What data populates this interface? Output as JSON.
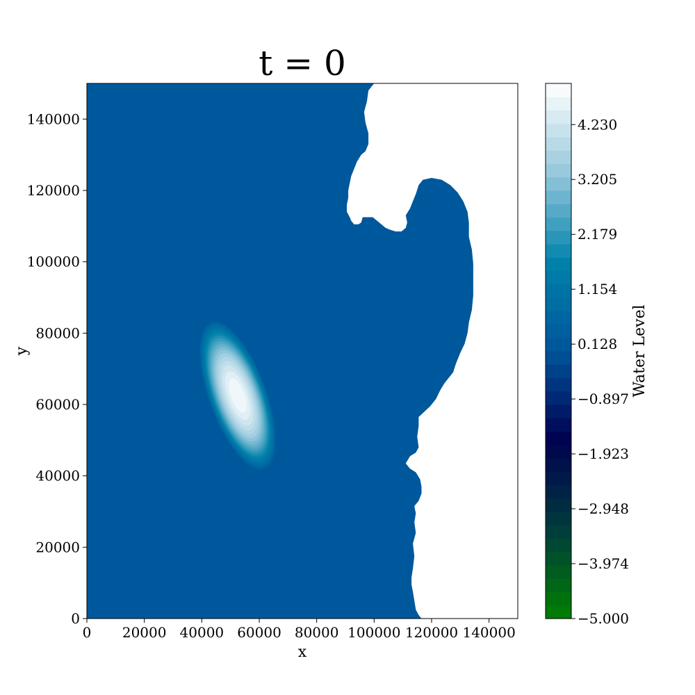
{
  "chart_data": {
    "type": "heatmap",
    "title": "t = 0",
    "xlabel": "x",
    "ylabel": "y",
    "xlim": [
      0,
      150000
    ],
    "ylim": [
      0,
      150000
    ],
    "xticks": [
      0,
      20000,
      40000,
      60000,
      80000,
      100000,
      120000,
      140000
    ],
    "yticks": [
      0,
      20000,
      40000,
      60000,
      80000,
      100000,
      120000,
      140000
    ],
    "xtick_labels": [
      "0",
      "20000",
      "40000",
      "60000",
      "80000",
      "100000",
      "120000",
      "140000"
    ],
    "ytick_labels": [
      "0",
      "20000",
      "40000",
      "60000",
      "80000",
      "100000",
      "120000",
      "140000"
    ],
    "grid": false,
    "colorbar": {
      "label": "Water Level",
      "range": [
        -5.0,
        5.0
      ],
      "ticks": [
        -5.0,
        -3.974,
        -2.948,
        -1.923,
        -0.897,
        0.128,
        1.154,
        2.179,
        3.205,
        4.23
      ],
      "tick_labels": [
        "−5.000",
        "−3.974",
        "−2.948",
        "−1.923",
        "−0.897",
        "0.128",
        "1.154",
        "2.179",
        "3.205",
        "4.230"
      ],
      "levels": 40,
      "colormap_stops": [
        "#008000",
        "#003c3c",
        "#000050",
        "#00559b",
        "#0082aa",
        "#96c8dc",
        "#ffffff"
      ]
    },
    "background_level": 0.128,
    "initial_hump": {
      "center": [
        52500,
        62500
      ],
      "peak_level": 5.0,
      "semi_major_axis": 27000,
      "semi_minor_axis": 10000,
      "orientation_deg": 110
    },
    "land_boundary": [
      [
        100000,
        150000
      ],
      [
        98000,
        148000
      ],
      [
        97500,
        145000
      ],
      [
        96500,
        142000
      ],
      [
        97000,
        139000
      ],
      [
        98000,
        136000
      ],
      [
        98000,
        133000
      ],
      [
        97000,
        131000
      ],
      [
        95500,
        130000
      ],
      [
        94000,
        128000
      ],
      [
        93000,
        126000
      ],
      [
        92000,
        124000
      ],
      [
        91500,
        122000
      ],
      [
        91000,
        120000
      ],
      [
        91000,
        118000
      ],
      [
        90500,
        116000
      ],
      [
        90500,
        114000
      ],
      [
        91500,
        112500
      ],
      [
        92000,
        111500
      ],
      [
        93000,
        110500
      ],
      [
        94500,
        110500
      ],
      [
        95500,
        111000
      ],
      [
        96000,
        112500
      ],
      [
        97500,
        112500
      ],
      [
        99500,
        112500
      ],
      [
        101000,
        111500
      ],
      [
        102500,
        110500
      ],
      [
        104000,
        109500
      ],
      [
        105500,
        109000
      ],
      [
        107500,
        108500
      ],
      [
        109500,
        108500
      ],
      [
        111000,
        109500
      ],
      [
        111500,
        111000
      ],
      [
        111000,
        113000
      ],
      [
        112500,
        115000
      ],
      [
        113500,
        117000
      ],
      [
        114500,
        119000
      ],
      [
        115500,
        121500
      ],
      [
        117000,
        123000
      ],
      [
        120000,
        123500
      ],
      [
        123500,
        123000
      ],
      [
        126500,
        121500
      ],
      [
        129000,
        119500
      ],
      [
        131000,
        117000
      ],
      [
        132500,
        114000
      ],
      [
        133000,
        111000
      ],
      [
        133000,
        107000
      ],
      [
        134000,
        103500
      ],
      [
        134500,
        99500
      ],
      [
        134500,
        95000
      ],
      [
        134500,
        90500
      ],
      [
        134000,
        86500
      ],
      [
        133000,
        83000
      ],
      [
        132500,
        80000
      ],
      [
        131500,
        77000
      ],
      [
        130000,
        74500
      ],
      [
        128500,
        71500
      ],
      [
        127500,
        69000
      ],
      [
        126000,
        67500
      ],
      [
        124500,
        66000
      ],
      [
        123000,
        64000
      ],
      [
        121500,
        61500
      ],
      [
        119500,
        59500
      ],
      [
        117500,
        58000
      ],
      [
        115500,
        56500
      ],
      [
        115500,
        54000
      ],
      [
        115000,
        51000
      ],
      [
        115500,
        48000
      ],
      [
        114500,
        46500
      ],
      [
        112500,
        45500
      ],
      [
        111000,
        43500
      ],
      [
        112500,
        42000
      ],
      [
        114500,
        41000
      ],
      [
        116000,
        39000
      ],
      [
        116500,
        37000
      ],
      [
        116500,
        35000
      ],
      [
        115500,
        33000
      ],
      [
        114000,
        31500
      ],
      [
        114500,
        29500
      ],
      [
        114000,
        27000
      ],
      [
        114500,
        24000
      ],
      [
        113500,
        21000
      ],
      [
        114000,
        17500
      ],
      [
        113500,
        14000
      ],
      [
        113000,
        11500
      ],
      [
        113000,
        9500
      ],
      [
        113500,
        7500
      ],
      [
        114000,
        5000
      ],
      [
        114500,
        2500
      ],
      [
        115500,
        1000
      ],
      [
        116500,
        0
      ]
    ]
  }
}
